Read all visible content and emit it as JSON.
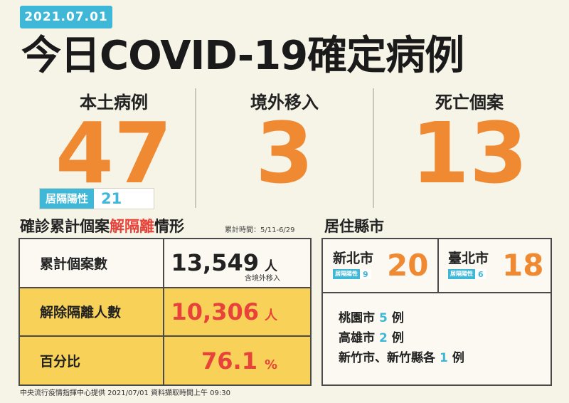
{
  "date": "2021.07.01",
  "title": "今日COVID-19確定病例",
  "stats": {
    "local": {
      "label": "本土病例",
      "value": "47"
    },
    "imported": {
      "label": "境外移入",
      "value": "3"
    },
    "deaths": {
      "label": "死亡個案",
      "value": "13"
    },
    "quarantine": {
      "label": "居隔陽性",
      "value": "21"
    }
  },
  "cumulative": {
    "title_part1": "確診累計個案",
    "title_highlight": "解隔離",
    "title_part2": "情形",
    "period_note": "累計時間：5/11-6/29",
    "rows": [
      {
        "label": "累計個案數",
        "value": "13,549",
        "unit": "人",
        "note": "含境外移入"
      },
      {
        "label": "解除隔離人數",
        "value": "10,306",
        "unit": "人"
      },
      {
        "label": "百分比",
        "value": "76.1",
        "unit": "%"
      }
    ]
  },
  "residence": {
    "title": "居住縣市",
    "top": [
      {
        "name": "新北市",
        "badge_label": "居隔陽性",
        "badge_value": "9",
        "count": "20"
      },
      {
        "name": "臺北市",
        "badge_label": "居隔陽性",
        "badge_value": "6",
        "count": "18"
      }
    ],
    "others": [
      {
        "name": "桃園市",
        "count": "5",
        "unit": "例"
      },
      {
        "name": "高雄市",
        "count": "2",
        "unit": "例"
      },
      {
        "name": "新竹市、新竹縣各",
        "count": "1",
        "unit": "例"
      }
    ]
  },
  "footer": "中央流行疫情指揮中心提供 2021/07/01 資料擷取時間上午 09:30",
  "colors": {
    "accent": "#3fb8d8",
    "orange": "#f08a32",
    "red": "#e8433a",
    "yellow": "#f8d258",
    "background": "#f6f3e7"
  }
}
